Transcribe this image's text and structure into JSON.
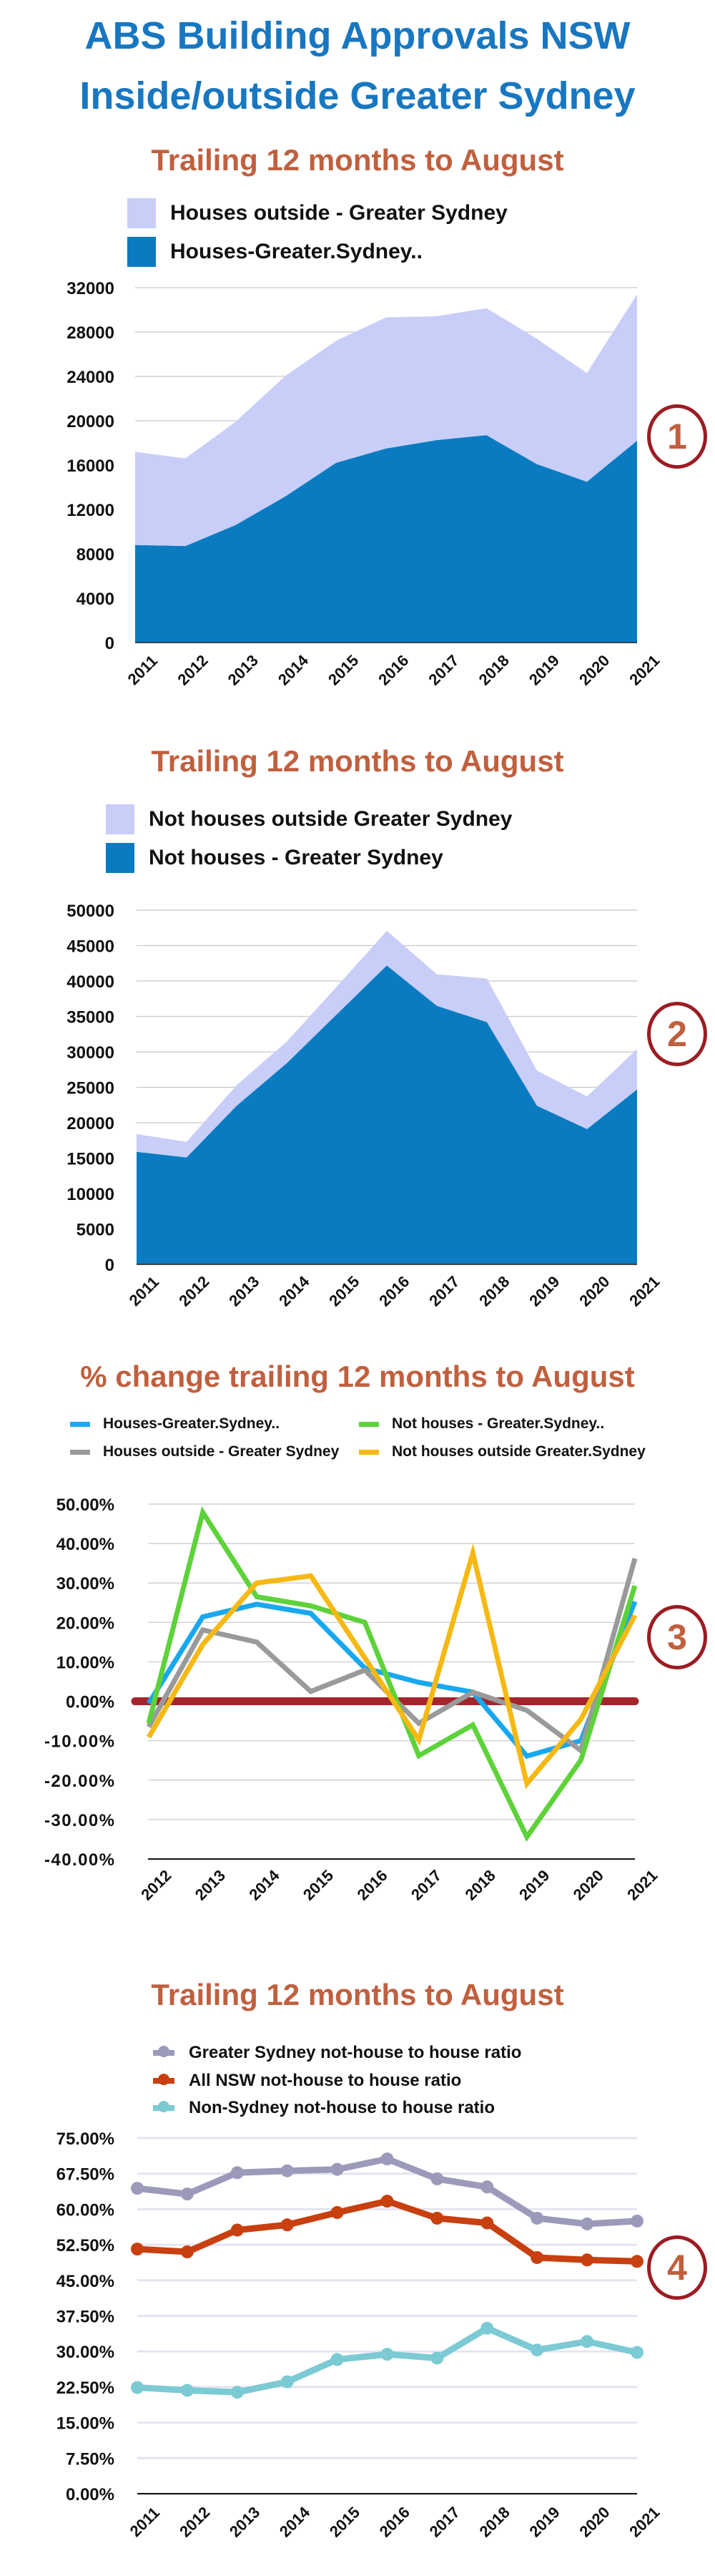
{
  "title": {
    "line1": "ABS Building Approvals NSW",
    "line2": "Inside/outside Greater Sydney"
  },
  "colors": {
    "title": "#1877c0",
    "subtitle": "#c0603f",
    "badge": "#9b1c22"
  },
  "chart_data": [
    {
      "type": "area",
      "stacked": true,
      "title": "Trailing 12 months to August",
      "badge": "1",
      "categories": [
        "2011",
        "2012",
        "2013",
        "2014",
        "2015",
        "2016",
        "2017",
        "2018",
        "2019",
        "2020",
        "2021"
      ],
      "series": [
        {
          "name": "Houses-Greater.Sydney..",
          "color": "#0a7bc1",
          "values": [
            8800,
            8700,
            10600,
            13200,
            16200,
            17500,
            18250,
            18700,
            16100,
            14500,
            18200
          ]
        },
        {
          "name": "Houses outside - Greater Sydney",
          "color": "#c8cef8",
          "values": [
            8400,
            7900,
            9300,
            10870,
            11000,
            11820,
            11170,
            11450,
            11300,
            9800,
            13200
          ]
        }
      ],
      "legend_order": [
        1,
        0
      ],
      "yticks": [
        "0",
        "4000",
        "8000",
        "12000",
        "16000",
        "20000",
        "24000",
        "28000",
        "32000"
      ],
      "ylim": [
        0,
        32000
      ],
      "grid": true,
      "legend": "top-left"
    },
    {
      "type": "area",
      "stacked": true,
      "title": "Trailing 12 months to August",
      "badge": "2",
      "categories": [
        "2011",
        "2012",
        "2013",
        "2014",
        "2015",
        "2016",
        "2017",
        "2018",
        "2019",
        "2020",
        "2021"
      ],
      "series": [
        {
          "name": "Not houses - Greater Sydney",
          "color": "#0a7bc1",
          "values": [
            15900,
            15100,
            22400,
            28400,
            35300,
            42200,
            36500,
            34200,
            22400,
            19100,
            24700
          ]
        },
        {
          "name": "Not houses outside Greater Sydney",
          "color": "#c8cef8",
          "values": [
            2500,
            2200,
            2900,
            3050,
            3900,
            4900,
            4450,
            6150,
            4950,
            4600,
            5700
          ]
        }
      ],
      "legend_order": [
        1,
        0
      ],
      "yticks": [
        "0",
        "5000",
        "10000",
        "15000",
        "20000",
        "25000",
        "30000",
        "35000",
        "40000",
        "45000",
        "50000"
      ],
      "ylim": [
        0,
        50000
      ],
      "grid": true,
      "legend": "top-left"
    },
    {
      "type": "line",
      "title": "% change trailing 12 months to August",
      "badge": "3",
      "categories": [
        "2012",
        "2013",
        "2014",
        "2015",
        "2016",
        "2017",
        "2018",
        "2019",
        "2020",
        "2021"
      ],
      "series": [
        {
          "name": "Houses-Greater.Sydney..",
          "color": "#18a8ef",
          "values": [
            -0.5,
            21.4,
            24.6,
            22.3,
            8.4,
            4.8,
            2.3,
            -13.9,
            -10,
            25.3
          ]
        },
        {
          "name": "Houses outside - Greater Sydney",
          "color": "#9a9a9a",
          "values": [
            -6.5,
            18.1,
            15,
            2.5,
            7.9,
            -5.6,
            2.3,
            -2.3,
            -12.5,
            36.2
          ]
        },
        {
          "name": "Not houses - Greater.Sydney..",
          "color": "#5ed23a",
          "values": [
            -5.6,
            47.9,
            26.5,
            24.2,
            20,
            -13.8,
            -6,
            -34.4,
            -14.9,
            29.3
          ]
        },
        {
          "name": "Not houses outside Greater.Sydney",
          "color": "#f6b812",
          "values": [
            -9.1,
            14.4,
            30,
            31.8,
            11,
            -9.8,
            37.6,
            -20.9,
            -4.6,
            21.8
          ]
        }
      ],
      "zero_line_color": "#a3252b",
      "yticks": [
        "-40.00%",
        "-30.00%",
        "-20.00%",
        "-10.00%",
        "0.00%",
        "10.00%",
        "20.00%",
        "30.00%",
        "40.00%",
        "50.00%"
      ],
      "ylim": [
        -40,
        50
      ],
      "grid": true,
      "legend": "top"
    },
    {
      "type": "line",
      "markers": true,
      "title": "Trailing 12 months to August",
      "badge": "4",
      "categories": [
        "2011",
        "2012",
        "2013",
        "2014",
        "2015",
        "2016",
        "2017",
        "2018",
        "2019",
        "2020",
        "2021"
      ],
      "series": [
        {
          "name": "Greater Sydney not-house to house ratio",
          "color": "#9c9aba",
          "values": [
            64.4,
            63.2,
            67.7,
            68.1,
            68.4,
            70.6,
            66.4,
            64.7,
            58.1,
            56.9,
            57.5
          ]
        },
        {
          "name": "All NSW not-house to house ratio",
          "color": "#c8400f",
          "values": [
            51.6,
            51,
            55.6,
            56.7,
            59.3,
            61.7,
            58.1,
            57.1,
            49.8,
            49.3,
            49
          ]
        },
        {
          "name": "Non-Sydney not-house to house ratio",
          "color": "#7ccad4",
          "values": [
            22.4,
            21.8,
            21.4,
            23.6,
            28.3,
            29.4,
            28.6,
            34.9,
            30.3,
            32.1,
            29.8
          ]
        }
      ],
      "yticks": [
        "0.00%",
        "7.50%",
        "15.00%",
        "22.50%",
        "30.00%",
        "37.50%",
        "45.00%",
        "52.50%",
        "60.00%",
        "67.50%",
        "75.00%"
      ],
      "ylim": [
        0,
        75
      ],
      "grid": true,
      "legend": "top"
    }
  ]
}
